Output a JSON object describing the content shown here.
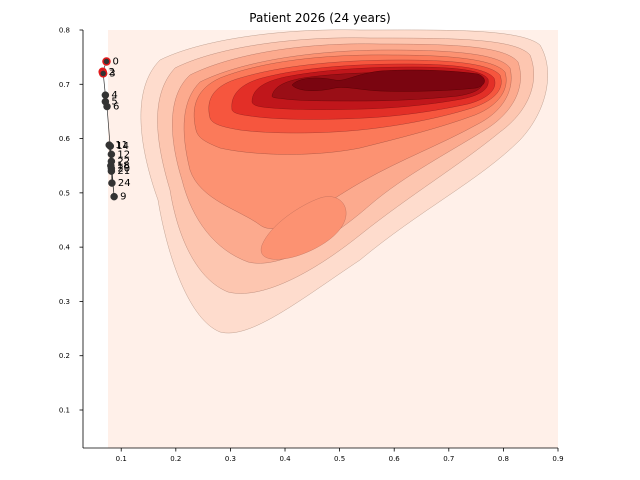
{
  "chart_data": {
    "type": "scatter",
    "title": "Patient 2026 (24 years)",
    "xlabel": "",
    "ylabel": "",
    "xlim": [
      0.03,
      0.9
    ],
    "ylim": [
      0.03,
      0.8
    ],
    "x_ticks": [
      "0.1",
      "0.2",
      "0.3",
      "0.4",
      "0.5",
      "0.6",
      "0.7",
      "0.8",
      "0.9"
    ],
    "y_ticks": [
      "0.1",
      "0.2",
      "0.3",
      "0.4",
      "0.5",
      "0.6",
      "0.7",
      "0.8"
    ],
    "grid": false,
    "density_colormap": "Reds",
    "colors": {
      "point": "#333333",
      "highlight_edge": "#e31a1c",
      "path": "#333333"
    },
    "points": [
      {
        "label": "0",
        "x": 0.073,
        "y": 0.742,
        "highlight": true
      },
      {
        "label": "2",
        "x": 0.066,
        "y": 0.723,
        "highlight": true
      },
      {
        "label": "3",
        "x": 0.067,
        "y": 0.72,
        "highlight": true
      },
      {
        "label": "4",
        "x": 0.071,
        "y": 0.68
      },
      {
        "label": "5",
        "x": 0.071,
        "y": 0.668
      },
      {
        "label": "6",
        "x": 0.074,
        "y": 0.659
      },
      {
        "label": "11",
        "x": 0.078,
        "y": 0.588
      },
      {
        "label": "14",
        "x": 0.08,
        "y": 0.586
      },
      {
        "label": "12",
        "x": 0.082,
        "y": 0.571
      },
      {
        "label": "22",
        "x": 0.082,
        "y": 0.558
      },
      {
        "label": "18",
        "x": 0.081,
        "y": 0.55
      },
      {
        "label": "20",
        "x": 0.082,
        "y": 0.545
      },
      {
        "label": "21",
        "x": 0.082,
        "y": 0.54
      },
      {
        "label": "24",
        "x": 0.083,
        "y": 0.518
      },
      {
        "label": "9",
        "x": 0.087,
        "y": 0.493
      }
    ],
    "density_series": "decorative KDE background (values not labeled)"
  }
}
